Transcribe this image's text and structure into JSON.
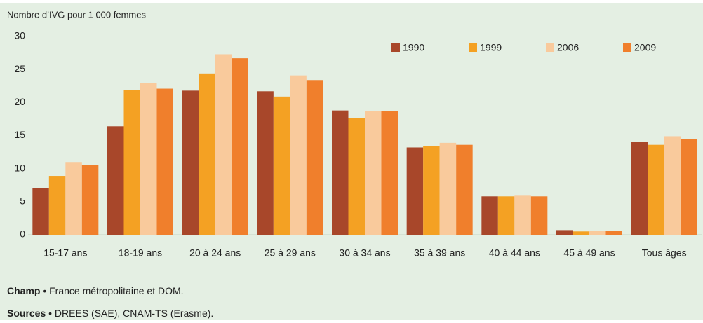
{
  "chart_data": {
    "type": "bar",
    "title": "Nombre d’IVG pour 1 000 femmes",
    "categories": [
      "15-17 ans",
      "18-19 ans",
      "20 à 24 ans",
      "25 à 29 ans",
      "30 à 34 ans",
      "35 à 39 ans",
      "40 à 44 ans",
      "45 à 49 ans",
      "Tous âges"
    ],
    "series": [
      {
        "name": "1990",
        "color": "#a8472a",
        "values": [
          7.0,
          16.4,
          21.8,
          21.7,
          18.8,
          13.2,
          5.8,
          0.7,
          14.0
        ]
      },
      {
        "name": "1999",
        "color": "#f4a123",
        "values": [
          8.9,
          21.9,
          24.4,
          20.9,
          17.7,
          13.4,
          5.8,
          0.5,
          13.6
        ]
      },
      {
        "name": "2006",
        "color": "#f9ca9c",
        "values": [
          11.0,
          22.9,
          27.3,
          24.1,
          18.7,
          13.9,
          5.9,
          0.6,
          14.9
        ]
      },
      {
        "name": "2009",
        "color": "#f07f2c",
        "values": [
          10.5,
          22.1,
          26.7,
          23.4,
          18.7,
          13.6,
          5.8,
          0.6,
          14.5
        ]
      }
    ],
    "ylim": [
      0,
      30
    ],
    "yticks": [
      0,
      5,
      10,
      15,
      20,
      25,
      30
    ],
    "grid": false,
    "legend": "top-right",
    "footnotes": [
      {
        "label": "Champ",
        "text": "• France métropolitaine et DOM."
      },
      {
        "label": "Sources",
        "text": "• DREES (SAE), CNAM-TS (Erasme)."
      }
    ]
  }
}
